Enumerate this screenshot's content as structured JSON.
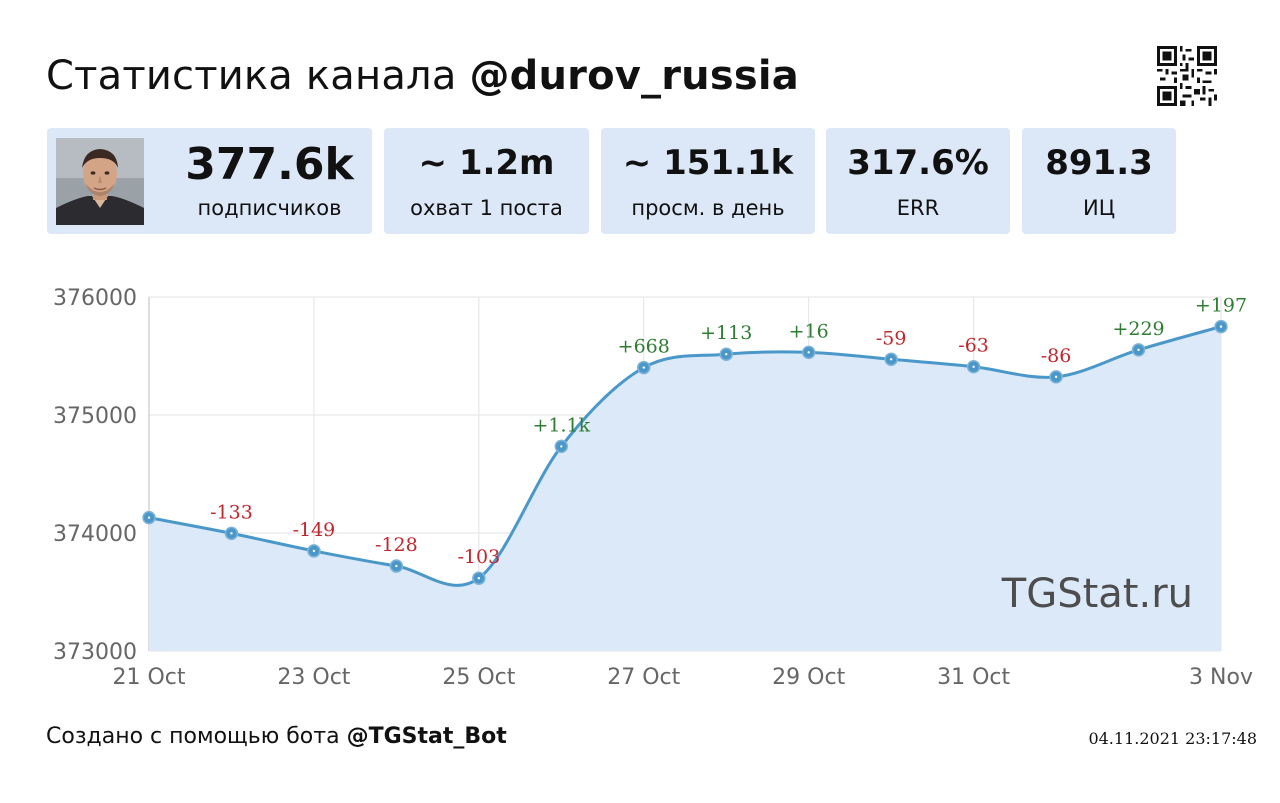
{
  "header": {
    "title_prefix": "Статистика канала ",
    "channel_handle": "@durov_russia"
  },
  "stats": [
    {
      "value": "377.6k",
      "label": "подписчиков"
    },
    {
      "value": "~ 1.2m",
      "label": "охват 1 поста"
    },
    {
      "value": "~ 151.1k",
      "label": "просм. в день"
    },
    {
      "value": "317.6%",
      "label": "ERR"
    },
    {
      "value": "891.3",
      "label": "ИЦ"
    }
  ],
  "chart_data": {
    "type": "line",
    "x": [
      "21 Oct",
      "22 Oct",
      "23 Oct",
      "24 Oct",
      "25 Oct",
      "26 Oct",
      "27 Oct",
      "28 Oct",
      "29 Oct",
      "30 Oct",
      "31 Oct",
      "1 Nov",
      "2 Nov",
      "3 Nov"
    ],
    "values": [
      374130,
      373997,
      373848,
      373720,
      373617,
      374734,
      375402,
      375515,
      375531,
      375472,
      375409,
      375323,
      375552,
      375749
    ],
    "point_labels": [
      "",
      "-133",
      "-149",
      "-128",
      "-103",
      "+1.1k",
      "+668",
      "+113",
      "+16",
      "-59",
      "-63",
      "-86",
      "+229",
      "+197"
    ],
    "x_tick_labels": [
      "21 Oct",
      "23 Oct",
      "25 Oct",
      "27 Oct",
      "29 Oct",
      "31 Oct",
      "3 Nov"
    ],
    "x_tick_index": [
      0,
      2,
      4,
      6,
      8,
      10,
      13
    ],
    "y_ticks": [
      373000,
      374000,
      375000,
      376000
    ],
    "ylim": [
      373000,
      376000
    ],
    "grid": true,
    "watermark": "TGStat.ru",
    "colors": {
      "line": "#4a97c9",
      "fill": "#dce9f9",
      "positive": "#2e7d32",
      "negative": "#c0262d",
      "grid": "#e3e3e3",
      "axis_text": "#666666"
    }
  },
  "footer": {
    "prefix": "Создано с помощью бота ",
    "bot_handle": "@TGStat_Bot",
    "timestamp": "04.11.2021 23:17:48"
  },
  "icons": [
    "avatar-photo",
    "qr-code-icon"
  ]
}
